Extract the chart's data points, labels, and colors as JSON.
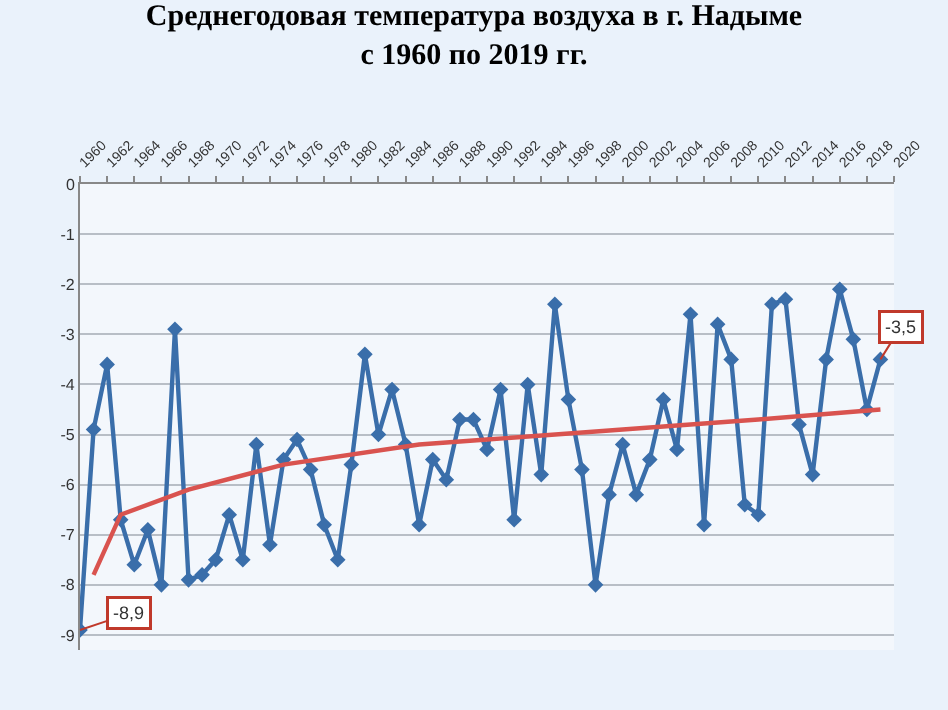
{
  "chart_data": {
    "type": "line",
    "title": "Среднегодовая температура воздуха в г. Надыме\nс 1960 по 2019 гг.",
    "x": [
      1960,
      1961,
      1962,
      1963,
      1964,
      1965,
      1966,
      1967,
      1968,
      1969,
      1970,
      1971,
      1972,
      1973,
      1974,
      1975,
      1976,
      1977,
      1978,
      1979,
      1980,
      1981,
      1982,
      1983,
      1984,
      1985,
      1986,
      1987,
      1988,
      1989,
      1990,
      1991,
      1992,
      1993,
      1994,
      1995,
      1996,
      1997,
      1998,
      1999,
      2000,
      2001,
      2002,
      2003,
      2004,
      2005,
      2006,
      2007,
      2008,
      2009,
      2010,
      2011,
      2012,
      2013,
      2014,
      2015,
      2016,
      2017,
      2018,
      2019
    ],
    "series": [
      {
        "color": "#3a6eaa",
        "marker": "diamond",
        "values": [
          -8.9,
          -4.9,
          -3.6,
          -6.7,
          -7.6,
          -6.9,
          -8.0,
          -2.9,
          -7.9,
          -7.8,
          -7.5,
          -6.6,
          -7.5,
          -5.2,
          -7.2,
          -5.5,
          -5.1,
          -5.7,
          -6.8,
          -7.5,
          -5.6,
          -3.4,
          -5.0,
          -4.1,
          -5.2,
          -6.8,
          -5.5,
          -5.9,
          -4.7,
          -4.7,
          -5.3,
          -4.1,
          -6.7,
          -4.0,
          -5.8,
          -2.4,
          -4.3,
          -5.7,
          -8.0,
          -6.2,
          -5.2,
          -6.2,
          -5.5,
          -4.3,
          -5.3,
          -2.6,
          -6.8,
          -2.8,
          -3.5,
          -6.4,
          -6.6,
          -2.4,
          -2.3,
          -4.8,
          -5.8,
          -3.5,
          -2.1,
          -3.1,
          -4.5,
          -3.5
        ]
      },
      {
        "color": "#d9534f",
        "marker": "none",
        "x": [
          1961,
          1963,
          1968,
          1975,
          1985,
          1990,
          2000,
          2010,
          2019
        ],
        "values": [
          -7.8,
          -6.6,
          -6.1,
          -5.6,
          -5.2,
          -5.1,
          -4.9,
          -4.7,
          -4.5
        ]
      }
    ],
    "annotations": [
      {
        "text": "-8,9",
        "x": 1960,
        "y": -8.9
      },
      {
        "text": "-3,5",
        "x": 2019,
        "y": -3.5
      }
    ],
    "xlim": [
      1960,
      2020
    ],
    "xticks": [
      1960,
      1962,
      1964,
      1966,
      1968,
      1970,
      1972,
      1974,
      1976,
      1978,
      1980,
      1982,
      1984,
      1986,
      1988,
      1990,
      1992,
      1994,
      1996,
      1998,
      2000,
      2002,
      2004,
      2006,
      2008,
      2010,
      2012,
      2014,
      2016,
      2018,
      2020
    ],
    "ylim": [
      -9.3,
      0
    ],
    "yticks": [
      0,
      -1,
      -2,
      -3,
      -4,
      -5,
      -6,
      -7,
      -8,
      -9
    ],
    "grid": "y"
  }
}
